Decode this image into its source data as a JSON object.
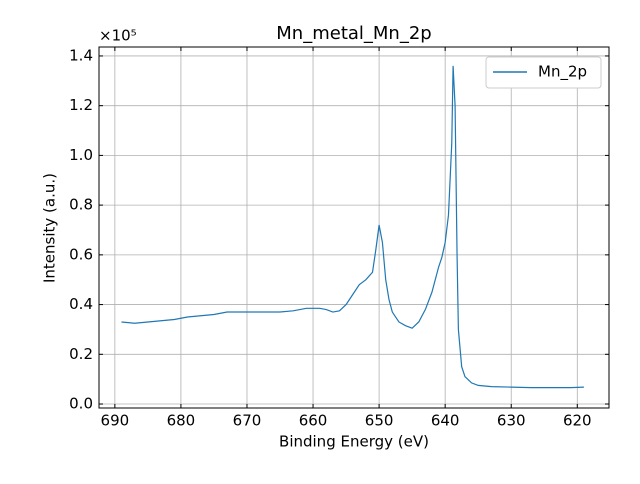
{
  "chart_data": {
    "type": "line",
    "title": "Mn_metal_Mn_2p",
    "xlabel": "Binding Energy (eV)",
    "ylabel": "Intensity (a.u.)",
    "y_offset_label": "×10⁵",
    "xlim": [
      692.4,
      615.2
    ],
    "xticks": [
      690,
      680,
      670,
      660,
      650,
      640,
      630,
      620
    ],
    "ylim": [
      -0.016,
      1.436
    ],
    "yticks": [
      {
        "value": 0,
        "label": "0.0"
      },
      0.2,
      0.4,
      0.6,
      0.8,
      {
        "value": 1,
        "label": "1.0"
      },
      1.2,
      1.4
    ],
    "grid": true,
    "legend": "upper right",
    "series": [
      {
        "name": "Mn_2p",
        "color": "#1f77b4",
        "x": [
          689,
          687,
          685,
          683,
          681,
          679,
          677,
          675,
          673,
          671,
          669,
          667,
          665,
          663,
          661,
          659,
          658,
          657,
          656,
          655,
          654,
          653,
          652,
          651,
          650.5,
          650,
          649.5,
          649,
          648.5,
          648,
          647,
          646,
          645,
          644,
          643,
          642,
          641,
          640.5,
          640,
          639.5,
          639,
          638.8,
          638.5,
          638.2,
          638,
          637.5,
          637,
          636,
          635,
          633,
          630,
          627,
          624,
          621,
          619
        ],
        "values": [
          0.33,
          0.325,
          0.33,
          0.335,
          0.34,
          0.35,
          0.355,
          0.36,
          0.37,
          0.37,
          0.37,
          0.37,
          0.37,
          0.375,
          0.385,
          0.385,
          0.38,
          0.37,
          0.375,
          0.4,
          0.44,
          0.48,
          0.5,
          0.53,
          0.62,
          0.72,
          0.65,
          0.5,
          0.42,
          0.37,
          0.33,
          0.315,
          0.305,
          0.33,
          0.38,
          0.45,
          0.55,
          0.59,
          0.65,
          0.76,
          1.05,
          1.36,
          1.2,
          0.6,
          0.3,
          0.15,
          0.11,
          0.085,
          0.075,
          0.07,
          0.068,
          0.066,
          0.066,
          0.066,
          0.068
        ]
      }
    ]
  }
}
